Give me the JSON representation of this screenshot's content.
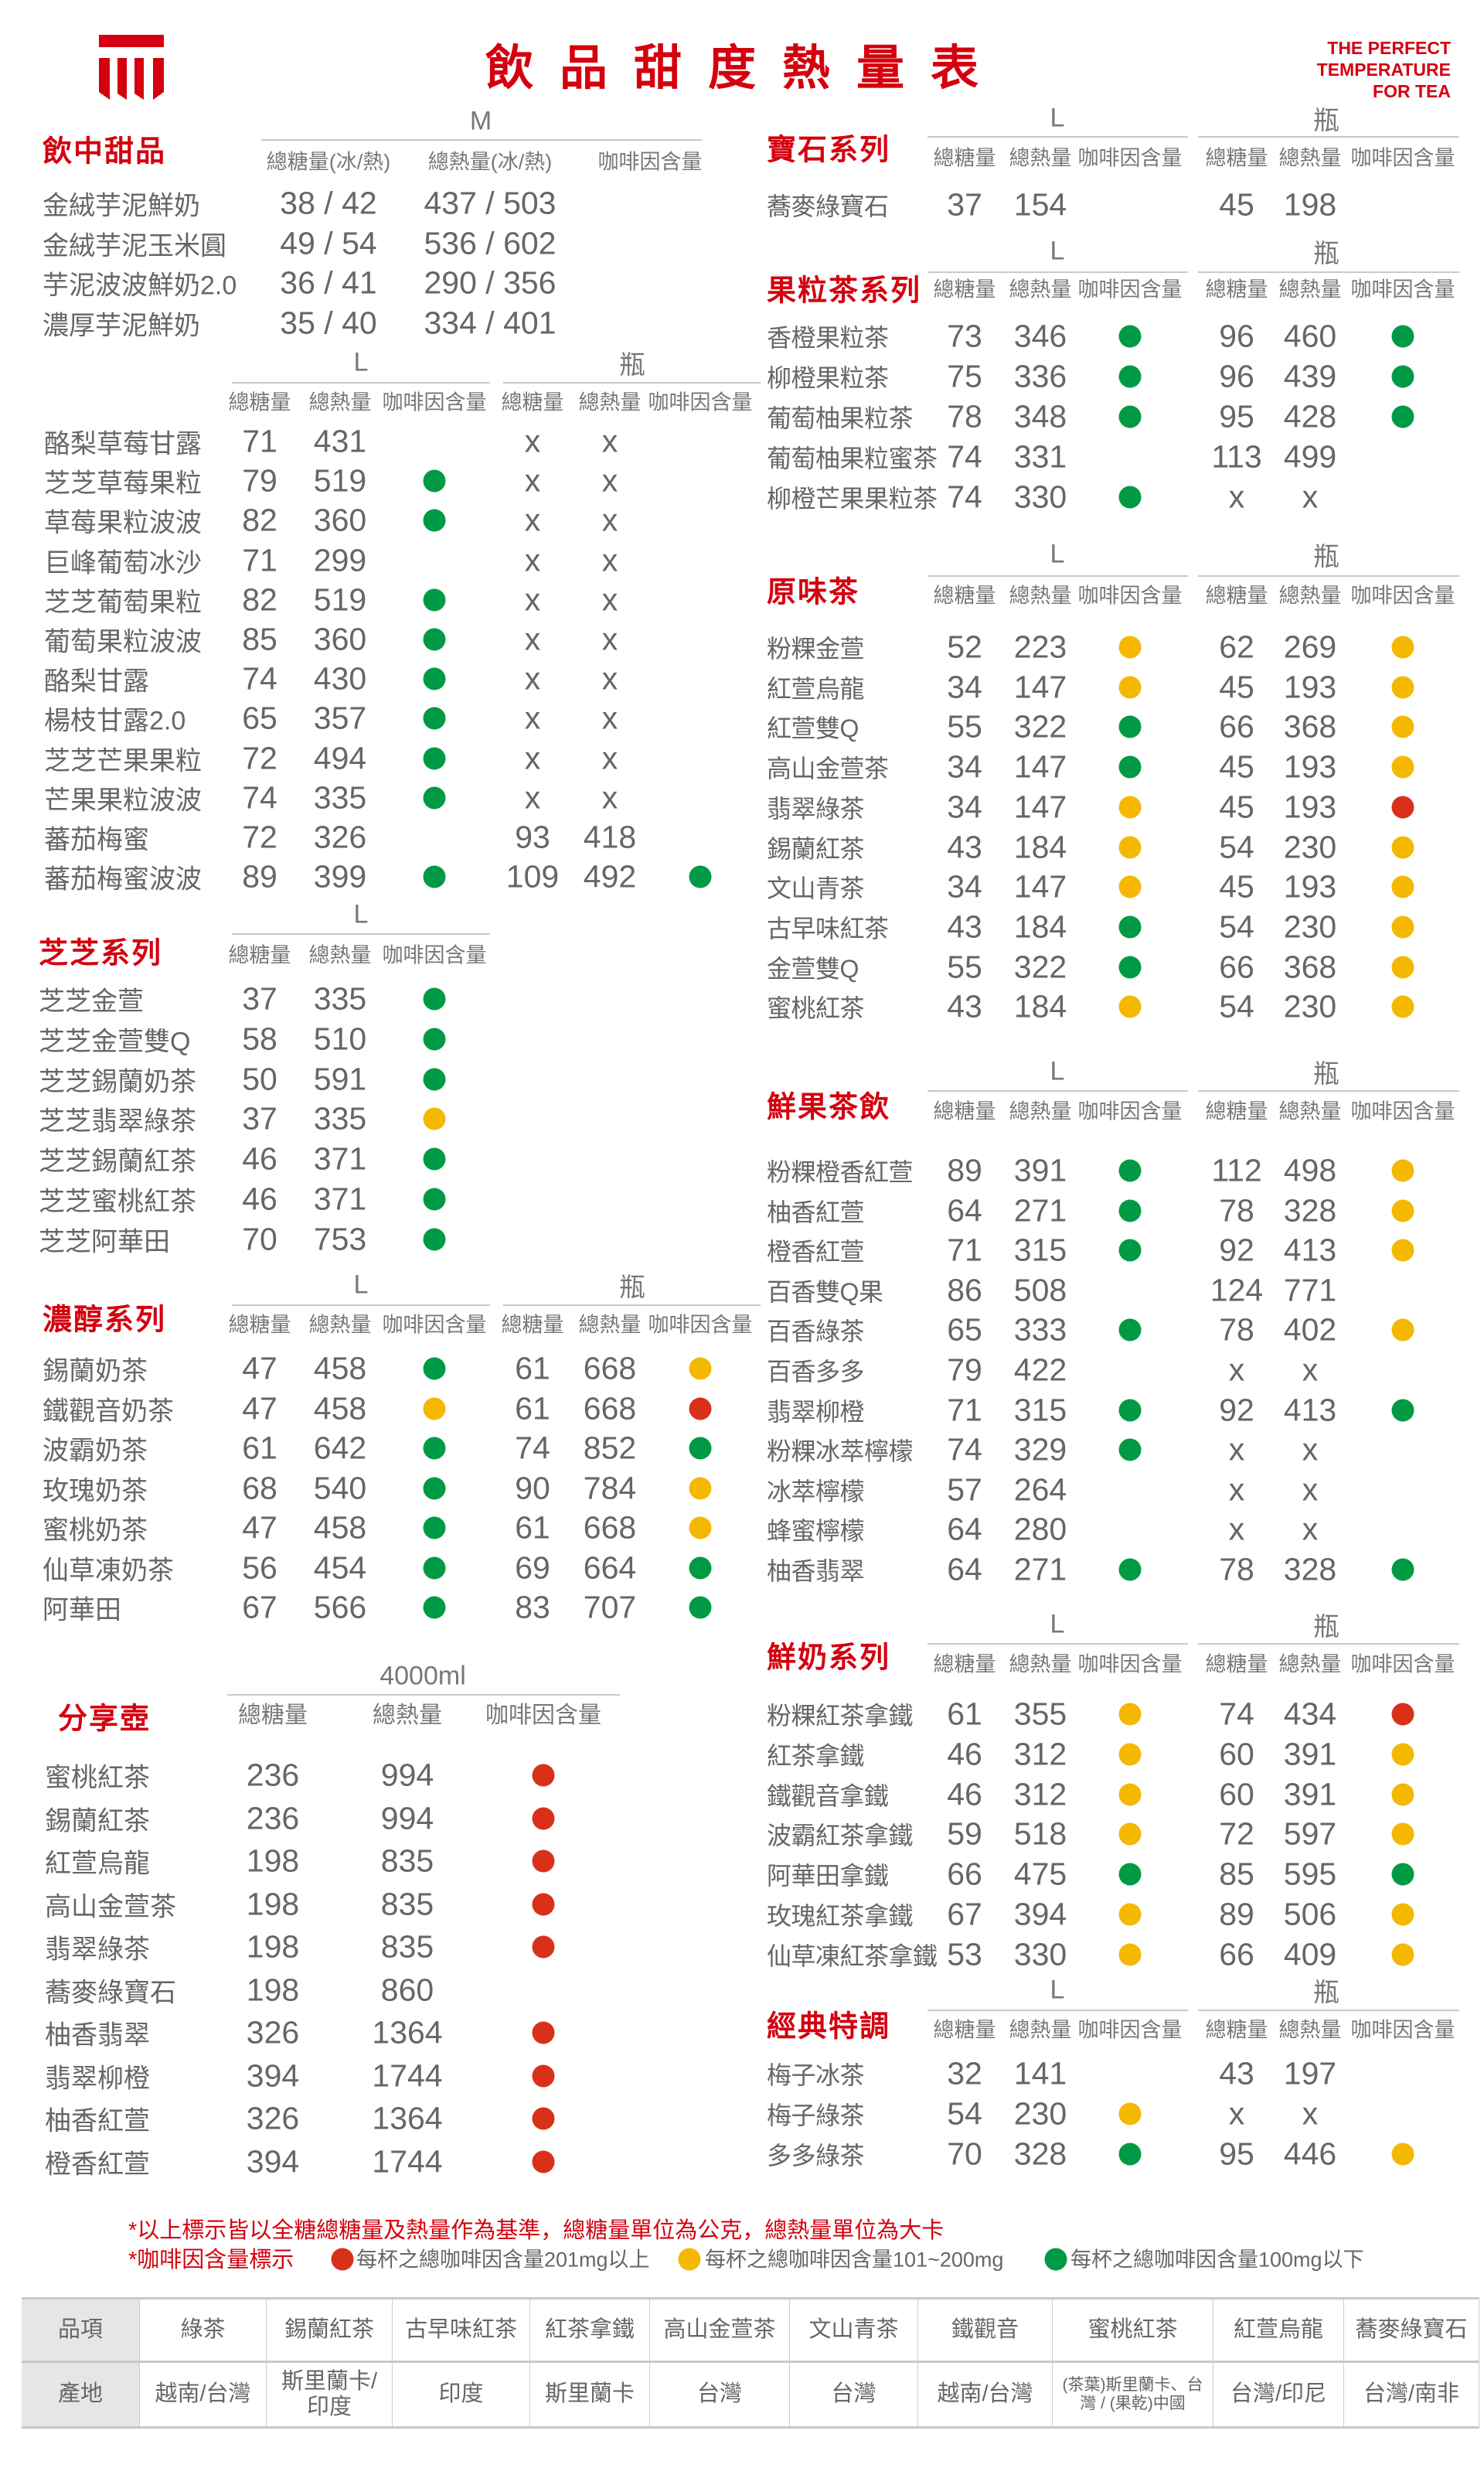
{
  "header": {
    "title": "飲品甜度熱量表",
    "tagline": [
      "THE PERFECT",
      "TEMPERATURE",
      "FOR TEA"
    ],
    "logo_icon": "brand-logo-icon"
  },
  "colors": {
    "brand": "#d4000f",
    "green": "#009a44",
    "yellow": "#f5b800",
    "red": "#d9301a"
  },
  "sections": [
    {
      "id": "dessert",
      "title": "飲中甜品",
      "groups": [
        {
          "label": "M",
          "headers": [
            "總糖量(冰/熱)",
            "總熱量(冰/熱)",
            "咖啡因含量"
          ]
        }
      ],
      "rows": [
        {
          "name": "金絨芋泥鮮奶",
          "l": [
            "38 / 42",
            "437 / 503",
            ""
          ]
        },
        {
          "name": "金絨芋泥玉米圓",
          "l": [
            "49 / 54",
            "536 / 602",
            ""
          ]
        },
        {
          "name": "芋泥波波鮮奶2.0",
          "l": [
            "36 / 41",
            "290 / 356",
            ""
          ]
        },
        {
          "name": "濃厚芋泥鮮奶",
          "l": [
            "35 / 40",
            "334 / 401",
            ""
          ]
        }
      ]
    },
    {
      "id": "fruit",
      "title": "",
      "groups": [
        {
          "label": "L",
          "headers": [
            "總糖量",
            "總熱量",
            "咖啡因含量"
          ]
        },
        {
          "label": "瓶",
          "headers": [
            "總糖量",
            "總熱量",
            "咖啡因含量"
          ]
        }
      ],
      "rows": [
        {
          "name": "酪梨草莓甘露",
          "l": [
            "71",
            "431",
            ""
          ],
          "b": [
            "x",
            "x",
            ""
          ]
        },
        {
          "name": "芝芝草莓果粒",
          "l": [
            "79",
            "519",
            "green"
          ],
          "b": [
            "x",
            "x",
            ""
          ]
        },
        {
          "name": "草莓果粒波波",
          "l": [
            "82",
            "360",
            "green"
          ],
          "b": [
            "x",
            "x",
            ""
          ]
        },
        {
          "name": "巨峰葡萄冰沙",
          "l": [
            "71",
            "299",
            ""
          ],
          "b": [
            "x",
            "x",
            ""
          ]
        },
        {
          "name": "芝芝葡萄果粒",
          "l": [
            "82",
            "519",
            "green"
          ],
          "b": [
            "x",
            "x",
            ""
          ]
        },
        {
          "name": "葡萄果粒波波",
          "l": [
            "85",
            "360",
            "green"
          ],
          "b": [
            "x",
            "x",
            ""
          ]
        },
        {
          "name": "酪梨甘露",
          "l": [
            "74",
            "430",
            "green"
          ],
          "b": [
            "x",
            "x",
            ""
          ]
        },
        {
          "name": "楊枝甘露2.0",
          "l": [
            "65",
            "357",
            "green"
          ],
          "b": [
            "x",
            "x",
            ""
          ]
        },
        {
          "name": "芝芝芒果果粒",
          "l": [
            "72",
            "494",
            "green"
          ],
          "b": [
            "x",
            "x",
            ""
          ]
        },
        {
          "name": "芒果果粒波波",
          "l": [
            "74",
            "335",
            "green"
          ],
          "b": [
            "x",
            "x",
            ""
          ]
        },
        {
          "name": "蕃茄梅蜜",
          "l": [
            "72",
            "326",
            ""
          ],
          "b": [
            "93",
            "418",
            ""
          ]
        },
        {
          "name": "蕃茄梅蜜波波",
          "l": [
            "89",
            "399",
            "green"
          ],
          "b": [
            "109",
            "492",
            "green"
          ]
        }
      ]
    },
    {
      "id": "zhizhi",
      "title": "芝芝系列",
      "groups": [
        {
          "label": "L",
          "headers": [
            "總糖量",
            "總熱量",
            "咖啡因含量"
          ]
        }
      ],
      "rows": [
        {
          "name": "芝芝金萱",
          "l": [
            "37",
            "335",
            "green"
          ]
        },
        {
          "name": "芝芝金萱雙Q",
          "l": [
            "58",
            "510",
            "green"
          ]
        },
        {
          "name": "芝芝錫蘭奶茶",
          "l": [
            "50",
            "591",
            "green"
          ]
        },
        {
          "name": "芝芝翡翠綠茶",
          "l": [
            "37",
            "335",
            "yellow"
          ]
        },
        {
          "name": "芝芝錫蘭紅茶",
          "l": [
            "46",
            "371",
            "green"
          ]
        },
        {
          "name": "芝芝蜜桃紅茶",
          "l": [
            "46",
            "371",
            "green"
          ]
        },
        {
          "name": "芝芝阿華田",
          "l": [
            "70",
            "753",
            "green"
          ]
        }
      ]
    },
    {
      "id": "nongchun",
      "title": "濃醇系列",
      "groups": [
        {
          "label": "L",
          "headers": [
            "總糖量",
            "總熱量",
            "咖啡因含量"
          ]
        },
        {
          "label": "瓶",
          "headers": [
            "總糖量",
            "總熱量",
            "咖啡因含量"
          ]
        }
      ],
      "rows": [
        {
          "name": "錫蘭奶茶",
          "l": [
            "47",
            "458",
            "green"
          ],
          "b": [
            "61",
            "668",
            "yellow"
          ]
        },
        {
          "name": "鐵觀音奶茶",
          "l": [
            "47",
            "458",
            "yellow"
          ],
          "b": [
            "61",
            "668",
            "red"
          ]
        },
        {
          "name": "波霸奶茶",
          "l": [
            "61",
            "642",
            "green"
          ],
          "b": [
            "74",
            "852",
            "green"
          ]
        },
        {
          "name": "玫瑰奶茶",
          "l": [
            "68",
            "540",
            "green"
          ],
          "b": [
            "90",
            "784",
            "yellow"
          ]
        },
        {
          "name": "蜜桃奶茶",
          "l": [
            "47",
            "458",
            "green"
          ],
          "b": [
            "61",
            "668",
            "yellow"
          ]
        },
        {
          "name": "仙草凍奶茶",
          "l": [
            "56",
            "454",
            "green"
          ],
          "b": [
            "69",
            "664",
            "green"
          ]
        },
        {
          "name": "阿華田",
          "l": [
            "67",
            "566",
            "green"
          ],
          "b": [
            "83",
            "707",
            "green"
          ]
        }
      ]
    },
    {
      "id": "sharepot",
      "title": "分享壺",
      "groups": [
        {
          "label": "4000ml",
          "headers": [
            "總糖量",
            "總熱量",
            "咖啡因含量"
          ]
        }
      ],
      "rows": [
        {
          "name": "蜜桃紅茶",
          "l": [
            "236",
            "994",
            "red"
          ]
        },
        {
          "name": "錫蘭紅茶",
          "l": [
            "236",
            "994",
            "red"
          ]
        },
        {
          "name": "紅萱烏龍",
          "l": [
            "198",
            "835",
            "red"
          ]
        },
        {
          "name": "高山金萱茶",
          "l": [
            "198",
            "835",
            "red"
          ]
        },
        {
          "name": "翡翠綠茶",
          "l": [
            "198",
            "835",
            "red"
          ]
        },
        {
          "name": "蕎麥綠寶石",
          "l": [
            "198",
            "860",
            ""
          ]
        },
        {
          "name": "柚香翡翠",
          "l": [
            "326",
            "1364",
            "red"
          ]
        },
        {
          "name": "翡翠柳橙",
          "l": [
            "394",
            "1744",
            "red"
          ]
        },
        {
          "name": "柚香紅萱",
          "l": [
            "326",
            "1364",
            "red"
          ]
        },
        {
          "name": "橙香紅萱",
          "l": [
            "394",
            "1744",
            "red"
          ]
        }
      ]
    },
    {
      "id": "gem",
      "title": "寶石系列",
      "groups": [
        {
          "label": "L",
          "headers": [
            "總糖量",
            "總熱量",
            "咖啡因含量"
          ]
        },
        {
          "label": "瓶",
          "headers": [
            "總糖量",
            "總熱量",
            "咖啡因含量"
          ]
        }
      ],
      "rows": [
        {
          "name": "蕎麥綠寶石",
          "l": [
            "37",
            "154",
            ""
          ],
          "b": [
            "45",
            "198",
            ""
          ]
        }
      ]
    },
    {
      "id": "fruittea",
      "title": "果粒茶系列",
      "groups": [
        {
          "label": "L",
          "headers": [
            "總糖量",
            "總熱量",
            "咖啡因含量"
          ]
        },
        {
          "label": "瓶",
          "headers": [
            "總糖量",
            "總熱量",
            "咖啡因含量"
          ]
        }
      ],
      "rows": [
        {
          "name": "香橙果粒茶",
          "l": [
            "73",
            "346",
            "green"
          ],
          "b": [
            "96",
            "460",
            "green"
          ]
        },
        {
          "name": "柳橙果粒茶",
          "l": [
            "75",
            "336",
            "green"
          ],
          "b": [
            "96",
            "439",
            "green"
          ]
        },
        {
          "name": "葡萄柚果粒茶",
          "l": [
            "78",
            "348",
            "green"
          ],
          "b": [
            "95",
            "428",
            "green"
          ]
        },
        {
          "name": "葡萄柚果粒蜜茶",
          "l": [
            "74",
            "331",
            ""
          ],
          "b": [
            "113",
            "499",
            ""
          ]
        },
        {
          "name": "柳橙芒果果粒茶",
          "l": [
            "74",
            "330",
            "green"
          ],
          "b": [
            "x",
            "x",
            ""
          ]
        }
      ]
    },
    {
      "id": "original",
      "title": "原味茶",
      "groups": [
        {
          "label": "L",
          "headers": [
            "總糖量",
            "總熱量",
            "咖啡因含量"
          ]
        },
        {
          "label": "瓶",
          "headers": [
            "總糖量",
            "總熱量",
            "咖啡因含量"
          ]
        }
      ],
      "rows": [
        {
          "name": "粉粿金萱",
          "l": [
            "52",
            "223",
            "yellow"
          ],
          "b": [
            "62",
            "269",
            "yellow"
          ]
        },
        {
          "name": "紅萱烏龍",
          "l": [
            "34",
            "147",
            "yellow"
          ],
          "b": [
            "45",
            "193",
            "yellow"
          ]
        },
        {
          "name": "紅萱雙Q",
          "l": [
            "55",
            "322",
            "green"
          ],
          "b": [
            "66",
            "368",
            "yellow"
          ]
        },
        {
          "name": "高山金萱茶",
          "l": [
            "34",
            "147",
            "green"
          ],
          "b": [
            "45",
            "193",
            "yellow"
          ]
        },
        {
          "name": "翡翠綠茶",
          "l": [
            "34",
            "147",
            "yellow"
          ],
          "b": [
            "45",
            "193",
            "red"
          ]
        },
        {
          "name": "錫蘭紅茶",
          "l": [
            "43",
            "184",
            "yellow"
          ],
          "b": [
            "54",
            "230",
            "yellow"
          ]
        },
        {
          "name": "文山青茶",
          "l": [
            "34",
            "147",
            "yellow"
          ],
          "b": [
            "45",
            "193",
            "yellow"
          ]
        },
        {
          "name": "古早味紅茶",
          "l": [
            "43",
            "184",
            "green"
          ],
          "b": [
            "54",
            "230",
            "yellow"
          ]
        },
        {
          "name": "金萱雙Q",
          "l": [
            "55",
            "322",
            "green"
          ],
          "b": [
            "66",
            "368",
            "yellow"
          ]
        },
        {
          "name": "蜜桃紅茶",
          "l": [
            "43",
            "184",
            "yellow"
          ],
          "b": [
            "54",
            "230",
            "yellow"
          ]
        }
      ]
    },
    {
      "id": "freshfruit",
      "title": "鮮果茶飲",
      "groups": [
        {
          "label": "L",
          "headers": [
            "總糖量",
            "總熱量",
            "咖啡因含量"
          ]
        },
        {
          "label": "瓶",
          "headers": [
            "總糖量",
            "總熱量",
            "咖啡因含量"
          ]
        }
      ],
      "rows": [
        {
          "name": "粉粿橙香紅萱",
          "l": [
            "89",
            "391",
            "green"
          ],
          "b": [
            "112",
            "498",
            "yellow"
          ]
        },
        {
          "name": "柚香紅萱",
          "l": [
            "64",
            "271",
            "green"
          ],
          "b": [
            "78",
            "328",
            "yellow"
          ]
        },
        {
          "name": "橙香紅萱",
          "l": [
            "71",
            "315",
            "green"
          ],
          "b": [
            "92",
            "413",
            "yellow"
          ]
        },
        {
          "name": "百香雙Q果",
          "l": [
            "86",
            "508",
            ""
          ],
          "b": [
            "124",
            "771",
            ""
          ]
        },
        {
          "name": "百香綠茶",
          "l": [
            "65",
            "333",
            "green"
          ],
          "b": [
            "78",
            "402",
            "yellow"
          ]
        },
        {
          "name": "百香多多",
          "l": [
            "79",
            "422",
            ""
          ],
          "b": [
            "x",
            "x",
            ""
          ]
        },
        {
          "name": "翡翠柳橙",
          "l": [
            "71",
            "315",
            "green"
          ],
          "b": [
            "92",
            "413",
            "green"
          ]
        },
        {
          "name": "粉粿冰萃檸檬",
          "l": [
            "74",
            "329",
            "green"
          ],
          "b": [
            "x",
            "x",
            ""
          ]
        },
        {
          "name": "冰萃檸檬",
          "l": [
            "57",
            "264",
            ""
          ],
          "b": [
            "x",
            "x",
            ""
          ]
        },
        {
          "name": "蜂蜜檸檬",
          "l": [
            "64",
            "280",
            ""
          ],
          "b": [
            "x",
            "x",
            ""
          ]
        },
        {
          "name": "柚香翡翠",
          "l": [
            "64",
            "271",
            "green"
          ],
          "b": [
            "78",
            "328",
            "green"
          ]
        }
      ]
    },
    {
      "id": "milk",
      "title": "鮮奶系列",
      "groups": [
        {
          "label": "L",
          "headers": [
            "總糖量",
            "總熱量",
            "咖啡因含量"
          ]
        },
        {
          "label": "瓶",
          "headers": [
            "總糖量",
            "總熱量",
            "咖啡因含量"
          ]
        }
      ],
      "rows": [
        {
          "name": "粉粿紅茶拿鐵",
          "l": [
            "61",
            "355",
            "yellow"
          ],
          "b": [
            "74",
            "434",
            "red"
          ]
        },
        {
          "name": "紅茶拿鐵",
          "l": [
            "46",
            "312",
            "yellow"
          ],
          "b": [
            "60",
            "391",
            "yellow"
          ]
        },
        {
          "name": "鐵觀音拿鐵",
          "l": [
            "46",
            "312",
            "yellow"
          ],
          "b": [
            "60",
            "391",
            "yellow"
          ]
        },
        {
          "name": "波霸紅茶拿鐵",
          "l": [
            "59",
            "518",
            "yellow"
          ],
          "b": [
            "72",
            "597",
            "yellow"
          ]
        },
        {
          "name": "阿華田拿鐵",
          "l": [
            "66",
            "475",
            "green"
          ],
          "b": [
            "85",
            "595",
            "green"
          ]
        },
        {
          "name": "玫瑰紅茶拿鐵",
          "l": [
            "67",
            "394",
            "yellow"
          ],
          "b": [
            "89",
            "506",
            "yellow"
          ]
        },
        {
          "name": "仙草凍紅茶拿鐵",
          "l": [
            "53",
            "330",
            "yellow"
          ],
          "b": [
            "66",
            "409",
            "yellow"
          ]
        }
      ]
    },
    {
      "id": "classic",
      "title": "經典特調",
      "groups": [
        {
          "label": "L",
          "headers": [
            "總糖量",
            "總熱量",
            "咖啡因含量"
          ]
        },
        {
          "label": "瓶",
          "headers": [
            "總糖量",
            "總熱量",
            "咖啡因含量"
          ]
        }
      ],
      "rows": [
        {
          "name": "梅子冰茶",
          "l": [
            "32",
            "141",
            ""
          ],
          "b": [
            "43",
            "197",
            ""
          ]
        },
        {
          "name": "梅子綠茶",
          "l": [
            "54",
            "230",
            "yellow"
          ],
          "b": [
            "x",
            "x",
            ""
          ]
        },
        {
          "name": "多多綠茶",
          "l": [
            "70",
            "328",
            "green"
          ],
          "b": [
            "95",
            "446",
            "yellow"
          ]
        }
      ]
    }
  ],
  "notes": {
    "basis": "*以上標示皆以全糖總糖量及熱量作為基準，總糖量單位為公克，總熱量單位為大卡",
    "caffeine_label": "*咖啡因含量標示",
    "legend": [
      {
        "color": "red",
        "text": "每杯之總咖啡因含量201mg以上"
      },
      {
        "color": "yellow",
        "text": "每杯之總咖啡因含量101~200mg"
      },
      {
        "color": "green",
        "text": "每杯之總咖啡因含量100mg以下"
      }
    ]
  },
  "origin_table": {
    "row_headers": [
      "品項",
      "產地"
    ],
    "items": [
      "綠茶",
      "錫蘭紅茶",
      "古早味紅茶",
      "紅茶拿鐵",
      "高山金萱茶",
      "文山青茶",
      "鐵觀音",
      "蜜桃紅茶",
      "紅萱烏龍",
      "蕎麥綠寶石"
    ],
    "origins": [
      "越南/台灣",
      "斯里蘭卡/印度",
      "印度",
      "斯里蘭卡",
      "台灣",
      "台灣",
      "越南/台灣",
      "(茶葉)斯里蘭卡、台灣 / (果乾)中國",
      "台灣/印尼",
      "台灣/南非"
    ]
  }
}
